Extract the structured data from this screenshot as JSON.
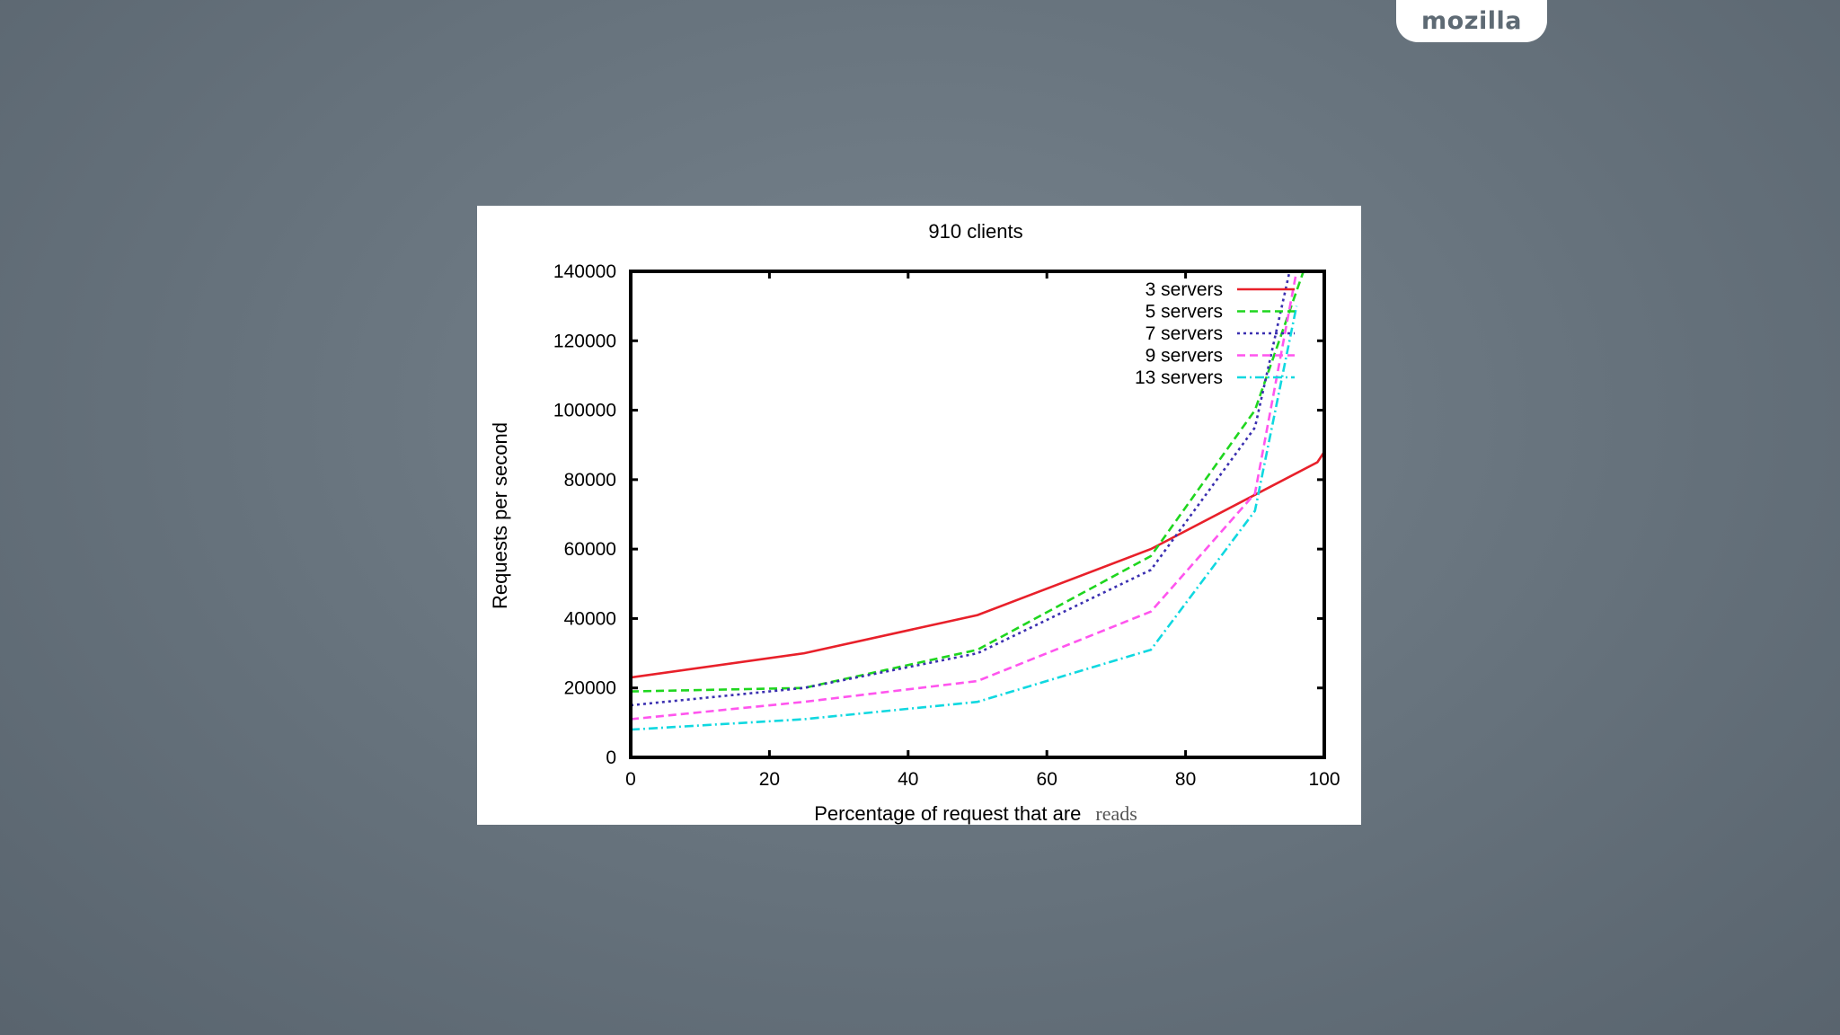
{
  "brand": {
    "logo_text": "mozilla"
  },
  "chart_data": {
    "type": "line",
    "title": "910 clients",
    "xlabel": "Percentage of request that are",
    "xlabel_suffix": "reads",
    "ylabel": "Requests per second",
    "xlim": [
      0,
      100
    ],
    "ylim": [
      0,
      140000
    ],
    "x_ticks": [
      "0",
      "20",
      "40",
      "60",
      "80",
      "100"
    ],
    "y_ticks": [
      "0",
      "20000",
      "40000",
      "60000",
      "80000",
      "100000",
      "120000",
      "140000"
    ],
    "grid": false,
    "legend_position": "top-right",
    "series": [
      {
        "name": "3 servers",
        "color": "#e8202a",
        "dash": "solid",
        "x": [
          0,
          25,
          50,
          75,
          99,
          100
        ],
        "y": [
          23000,
          30000,
          41000,
          60000,
          85000,
          88000
        ]
      },
      {
        "name": "5 servers",
        "color": "#1fd61f",
        "dash": "dashed",
        "x": [
          0,
          25,
          50,
          75,
          90,
          97
        ],
        "y": [
          19000,
          20000,
          31000,
          58000,
          100000,
          140000
        ]
      },
      {
        "name": "7 servers",
        "color": "#3a2fb0",
        "dash": "dotted",
        "x": [
          0,
          25,
          50,
          75,
          90,
          95
        ],
        "y": [
          15000,
          20000,
          30000,
          54000,
          95000,
          140000
        ]
      },
      {
        "name": "9 servers",
        "color": "#ff55ee",
        "dash": "dashed",
        "x": [
          0,
          25,
          50,
          75,
          90,
          96
        ],
        "y": [
          11000,
          16000,
          22000,
          42000,
          76000,
          140000
        ]
      },
      {
        "name": "13 servers",
        "color": "#10d8e0",
        "dash": "dashdot",
        "x": [
          0,
          25,
          50,
          75,
          90,
          96
        ],
        "y": [
          8000,
          11000,
          16000,
          31000,
          71000,
          130000
        ]
      }
    ]
  }
}
